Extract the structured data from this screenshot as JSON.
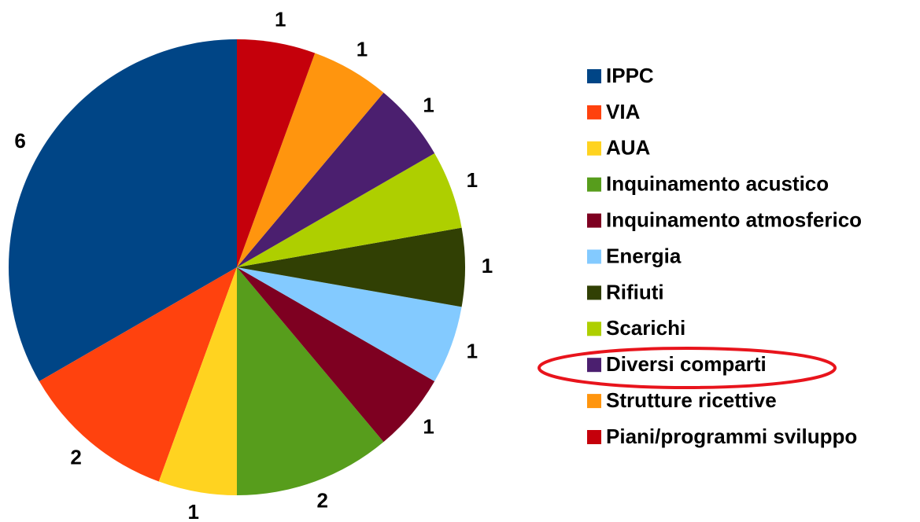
{
  "chart_data": {
    "type": "pie",
    "categories": [
      "IPPC",
      "VIA",
      "AUA",
      "Inquinamento acustico",
      "Inquinamento atmosferico",
      "Energia",
      "Rifiuti",
      "Scarichi",
      "Diversi comparti",
      "Strutture ricettive",
      "Piani/programmi sviluppo"
    ],
    "values": [
      6,
      2,
      1,
      2,
      1,
      1,
      1,
      1,
      1,
      1,
      1
    ],
    "colors": [
      "#004586",
      "#ff420e",
      "#ffd320",
      "#579d1c",
      "#7e0021",
      "#83caff",
      "#314004",
      "#aecf00",
      "#4b1f6f",
      "#ff950e",
      "#c5000b"
    ],
    "legend": "right"
  }
}
